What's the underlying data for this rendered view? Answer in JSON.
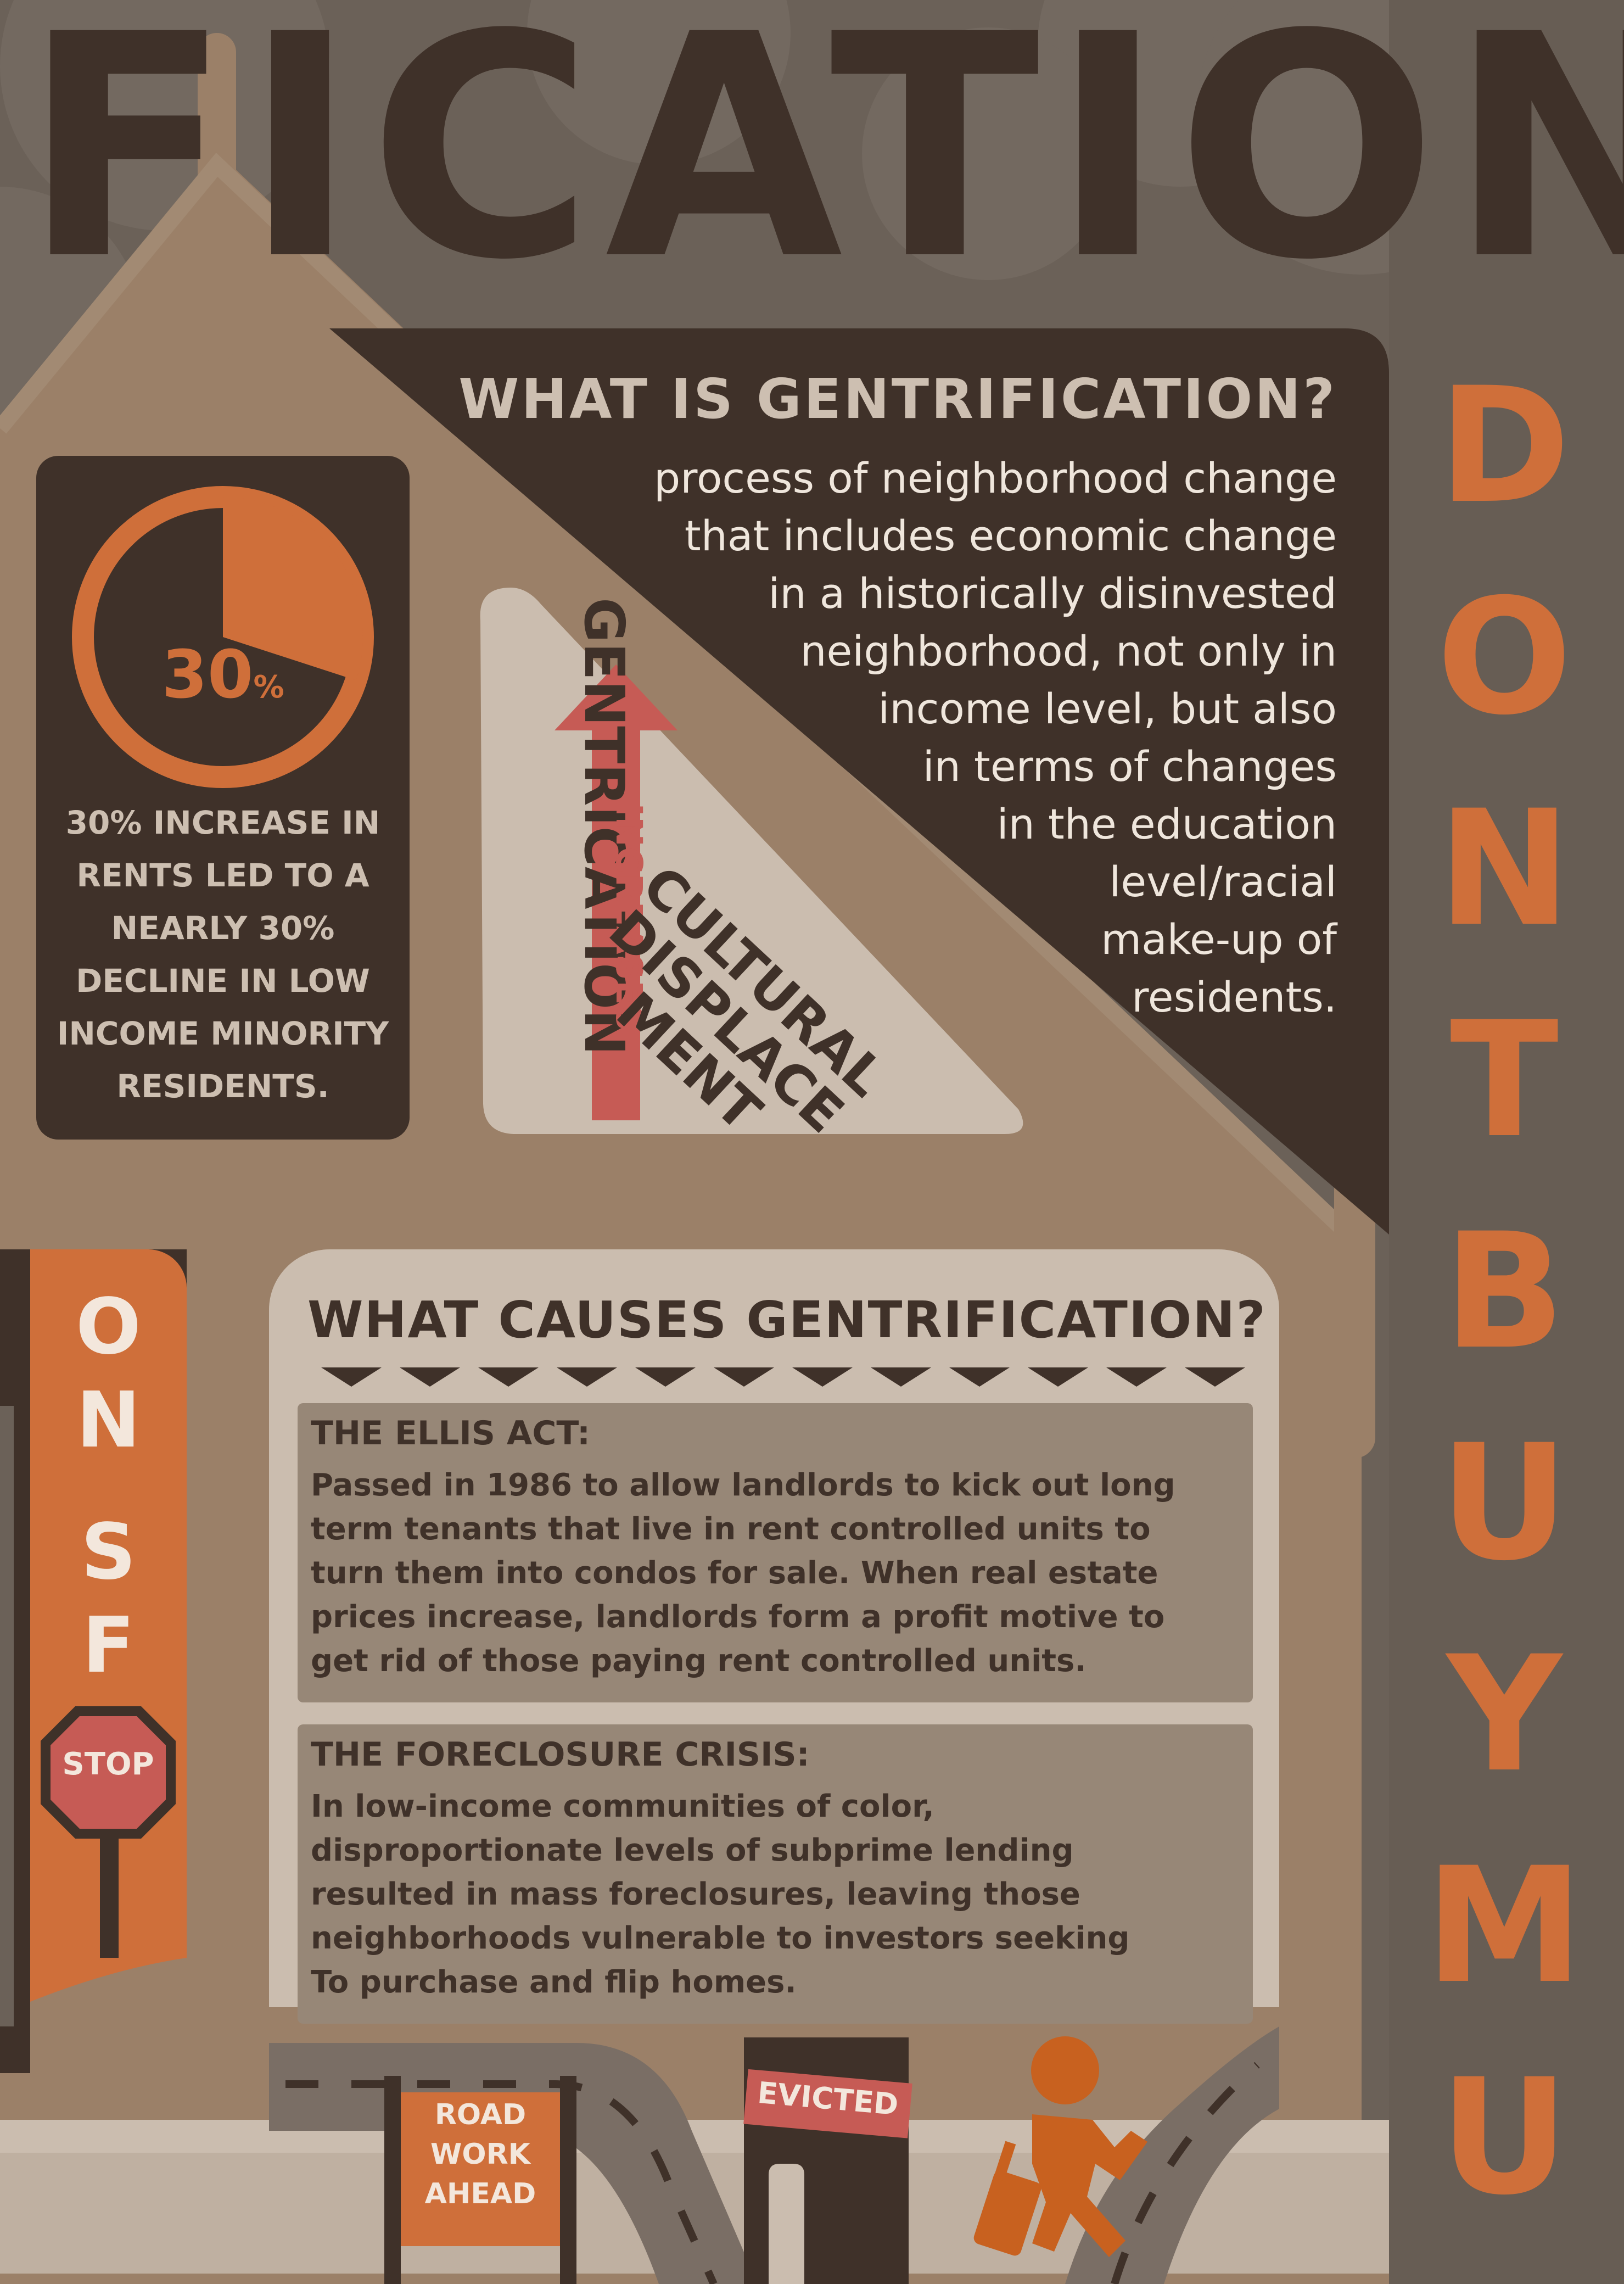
{
  "colors": {
    "background": "#6b6158",
    "dark_brown": "#3f3129",
    "house_tan": "#9b8068",
    "accent_orange": "#cf6f3a",
    "light_beige": "#cbbdaf",
    "sign_red": "#c65b55"
  },
  "header": {
    "title": "FICATION"
  },
  "right_banner": {
    "text": [
      "D",
      "O",
      "N",
      "T",
      "B",
      "U",
      "Y",
      "M",
      "U"
    ]
  },
  "definition": {
    "title": "WHAT IS GENTRIFICATION?",
    "text": "process of neighborhood change\nthat includes economic change\nin a historically disinvested\nneighborhood, not only in\nincome level, but also\nin terms of changes\nin the education\nlevel/racial\nmake-up of\nresidents."
  },
  "stat": {
    "percent": 30,
    "number": "30",
    "unit": "%",
    "text": "30% INCREASE IN\nRENTS LED TO A\nNEARLY 30%\nDECLINE IN LOW\nINCOME MINORITY\nRESIDENTS."
  },
  "triangle": {
    "left_label": "GENTRICATION",
    "arrow_label": "INCREASES",
    "diagonal_label": "CULTURAL\nDISPLACE\nMENT"
  },
  "left_banner": {
    "letters": [
      "O",
      "N",
      "S",
      "F"
    ]
  },
  "stop_sign": {
    "text": "STOP"
  },
  "causes": {
    "title": "WHAT CAUSES GENTRIFICATION?",
    "items": [
      {
        "title": "THE ELLIS ACT:",
        "text": "Passed in 1986 to allow landlords to kick out long\nterm tenants that live in rent controlled units to\nturn them into condos for sale. When real estate\nprices increase, landlords form a profit motive to\nget rid of those paying rent controlled units."
      },
      {
        "title": "THE FORECLOSURE CRISIS:",
        "text": "In low-income communities of color,\ndisproportionate levels of subprime lending\nresulted in mass foreclosures, leaving those\nneighborhoods vulnerable to investors seeking\nTo purchase and flip homes."
      }
    ]
  },
  "road_sign": {
    "text": "ROAD\nWORK\nAHEAD"
  },
  "evicted_sign": {
    "text": "EVICTED"
  },
  "icons": [
    "pie-chart-icon",
    "up-arrow-icon",
    "stop-sign-icon",
    "road-icon",
    "door-icon",
    "person-with-luggage-icon",
    "chevron-down-icon"
  ]
}
